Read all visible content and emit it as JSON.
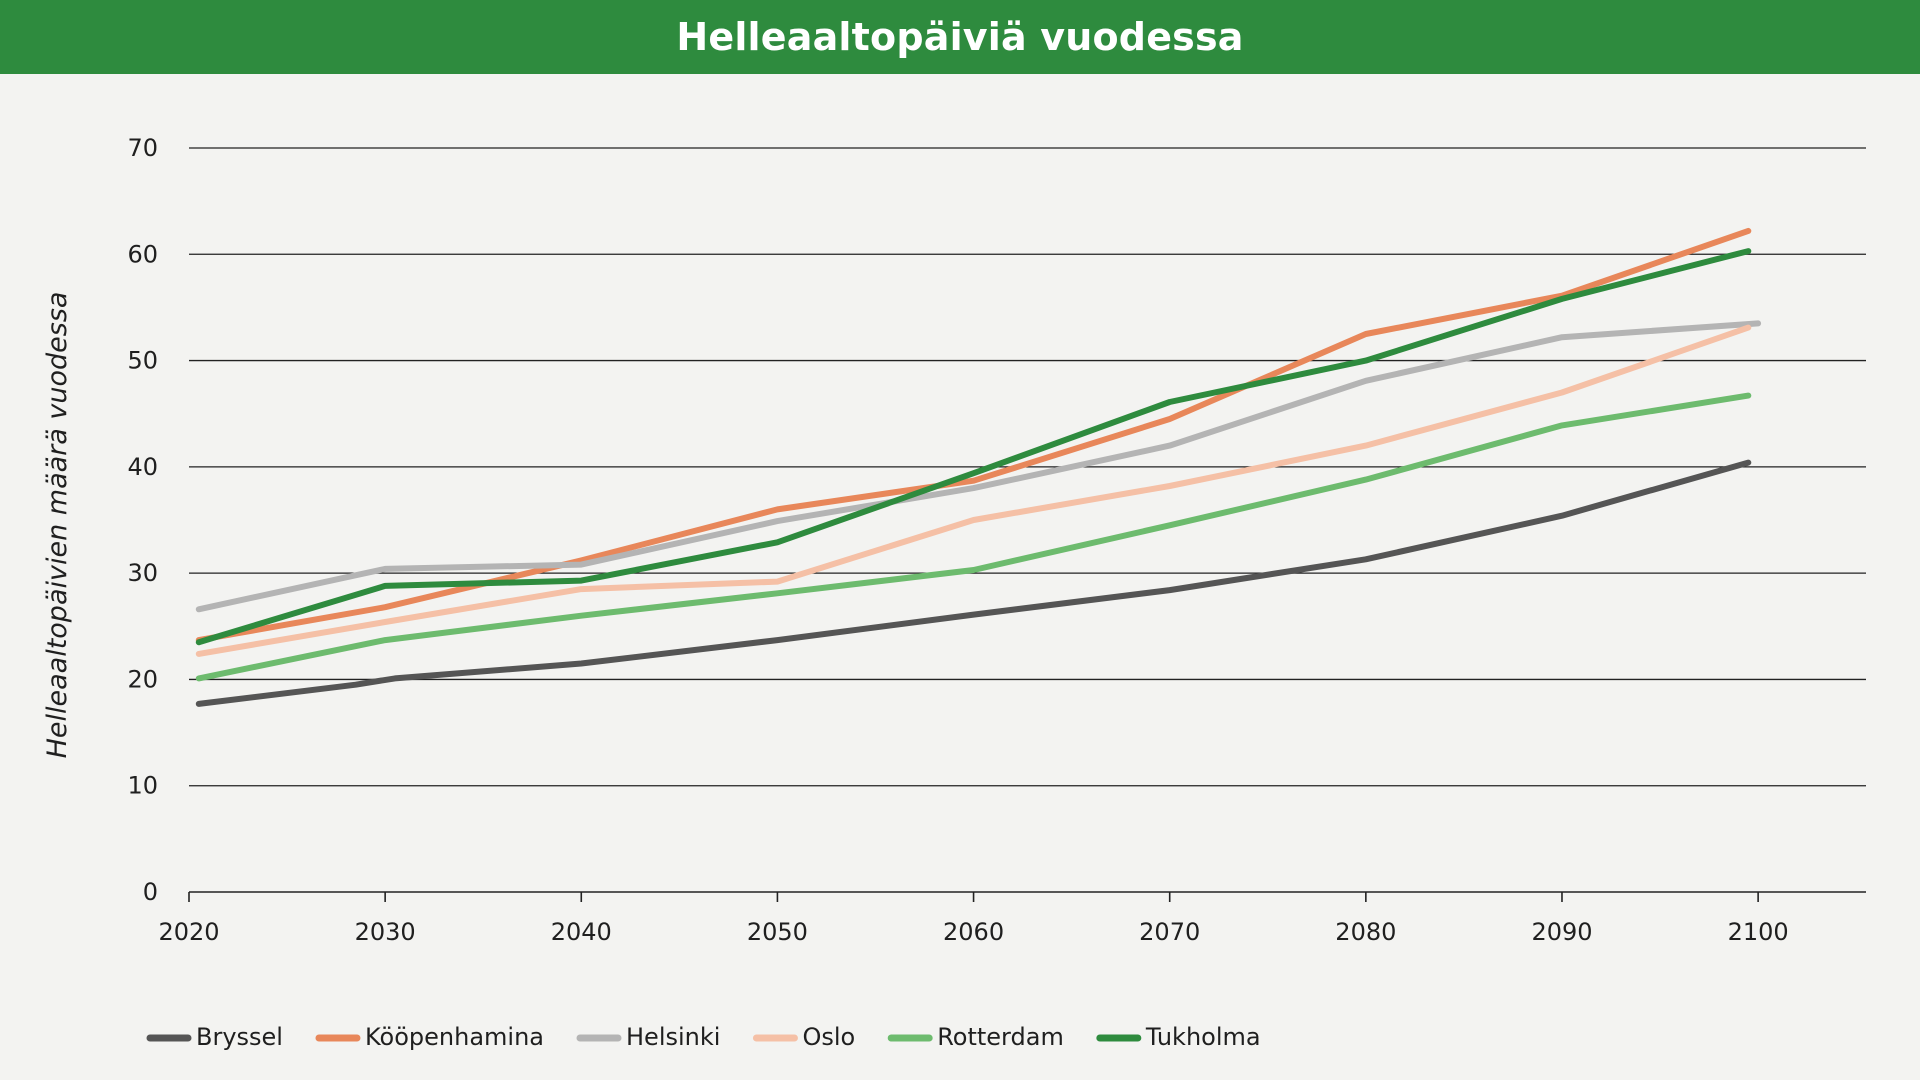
{
  "chart_data": {
    "type": "line",
    "title": "Helleaaltopäiviä vuodessa",
    "xlabel": "",
    "ylabel": "Helleaaltopäivien määrä vuodessa",
    "x": [
      2020,
      2030,
      2040,
      2050,
      2060,
      2070,
      2080,
      2090,
      2100
    ],
    "xticks": [
      "2020",
      "2030",
      "2040",
      "2050",
      "2060",
      "2070",
      "2080",
      "2090",
      "2100"
    ],
    "yticks": [
      "0",
      "10",
      "20",
      "30",
      "40",
      "50",
      "60",
      "70"
    ],
    "xlim": [
      2020,
      2105.5
    ],
    "ylim": [
      0,
      70
    ],
    "grid": "horizontal",
    "legend_position": "bottom-left",
    "series": [
      {
        "name": "Bryssel",
        "color": "#555555",
        "points": [
          [
            2020.5,
            17.7
          ],
          [
            2028.5,
            19.5
          ],
          [
            2030.5,
            20.1
          ],
          [
            2040,
            21.5
          ],
          [
            2050,
            23.7
          ],
          [
            2060,
            26.1
          ],
          [
            2070,
            28.4
          ],
          [
            2080,
            31.3
          ],
          [
            2090,
            35.4
          ],
          [
            2099.5,
            40.4
          ]
        ]
      },
      {
        "name": "Kööpenhamina",
        "color": "#e8875a",
        "points": [
          [
            2020.5,
            23.7
          ],
          [
            2030,
            26.8
          ],
          [
            2040,
            31.2
          ],
          [
            2050,
            36.0
          ],
          [
            2060,
            38.7
          ],
          [
            2070,
            44.5
          ],
          [
            2080,
            52.5
          ],
          [
            2090,
            56.1
          ],
          [
            2099.5,
            62.2
          ]
        ]
      },
      {
        "name": "Helsinki",
        "color": "#b4b4b4",
        "points": [
          [
            2020.5,
            26.6
          ],
          [
            2030,
            30.4
          ],
          [
            2040,
            30.8
          ],
          [
            2050,
            34.9
          ],
          [
            2060,
            38.0
          ],
          [
            2070,
            42.0
          ],
          [
            2080,
            48.1
          ],
          [
            2090,
            52.2
          ],
          [
            2100,
            53.5
          ]
        ]
      },
      {
        "name": "Oslo",
        "color": "#f5c0a6",
        "points": [
          [
            2020.5,
            22.4
          ],
          [
            2030,
            25.4
          ],
          [
            2040,
            28.5
          ],
          [
            2050,
            29.2
          ],
          [
            2060,
            35.0
          ],
          [
            2070,
            38.2
          ],
          [
            2080,
            42.0
          ],
          [
            2090,
            47.0
          ],
          [
            2099.5,
            53.1
          ]
        ]
      },
      {
        "name": "Rotterdam",
        "color": "#6dbb6e",
        "points": [
          [
            2020.5,
            20.1
          ],
          [
            2030,
            23.7
          ],
          [
            2040,
            26.0
          ],
          [
            2050,
            28.1
          ],
          [
            2060,
            30.3
          ],
          [
            2070,
            34.5
          ],
          [
            2080,
            38.8
          ],
          [
            2090,
            43.9
          ],
          [
            2099.5,
            46.7
          ]
        ]
      },
      {
        "name": "Tukholma",
        "color": "#2e8b3e",
        "points": [
          [
            2020.5,
            23.5
          ],
          [
            2030,
            28.8
          ],
          [
            2040,
            29.3
          ],
          [
            2050,
            32.9
          ],
          [
            2060,
            39.4
          ],
          [
            2070,
            46.1
          ],
          [
            2080,
            50.0
          ],
          [
            2090,
            55.8
          ],
          [
            2099.5,
            60.3
          ]
        ]
      }
    ]
  }
}
